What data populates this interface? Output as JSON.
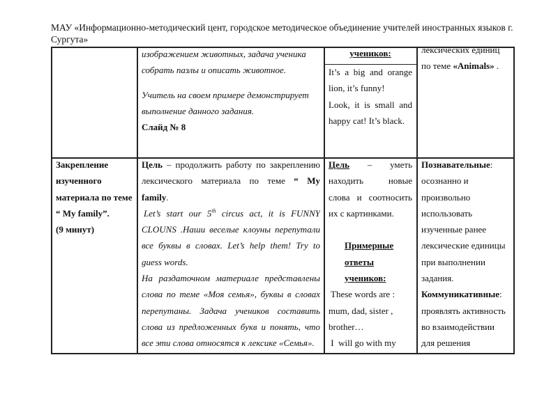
{
  "header": {
    "line1": "МАУ «Информационно-методический цент, городское методическое объединение учителей иностранных языков г.",
    "line2": "Сургута»"
  },
  "row1": {
    "col2": {
      "l1": "изображением животных, задача ученика",
      "l2": "собрать пазлы и описать животное.",
      "l3": "Учитель на своем примере демонстрирует",
      "l4": "выполнение данного задания.",
      "l5": "Слайд № 8"
    },
    "col3": {
      "heading": "учеников:",
      "l1": "It’s a big and orange",
      "l2": "lion, it’s funny!",
      "l3": "Look, it is small and",
      "l4": "happy cat! It’s black."
    },
    "col4": {
      "l1": "лексических единиц",
      "l2_prefix": "по теме ",
      "l2_bold": "«Animals»",
      "l2_suffix": " ."
    }
  },
  "row2": {
    "col1": {
      "l1": "Закрепление",
      "l2": "изученного",
      "l3": "материала по теме",
      "l4": "“ My family”.",
      "l5": "(9 минут)"
    },
    "col2": {
      "l1_bold": "Цель",
      "l1_rest": " – продолжить работу по закреплению",
      "l2_rest": "лексического материала по теме",
      "l2_bold": "“ My",
      "l3_bold": "family",
      "l3_rest": ".",
      "l4_a": "Let’s start our 5",
      "l4_sup": "th",
      "l4_b": " circus act, it is FUNNY",
      "l5": "CLOUNS .Наши веселые клоуны перепутали",
      "l6": "все буквы в словах. Let’s help them! Try to",
      "l7": "guess words.",
      "l8": "На раздаточном материале представлены",
      "l9": "слова по теме «Моя семья», буквы в словах",
      "l10": "перепутаны. Задача учеников составить",
      "l11": "слова из предложенных букв и понять, что",
      "l12": "все эти слова относятся к лексике «Семья»."
    },
    "col3": {
      "l1_bold": "Цель",
      "l1_rest": "– уметь",
      "l2": "находить новые",
      "l3": "слова и соотносить",
      "l4": "их с картинками.",
      "h1": "Примерные",
      "h2": "ответы",
      "h3": "учеников:",
      "a1": " These words are :",
      "a2": "mum, dad, sister ,",
      "a3": "brother…",
      "a4": " I  will go with my"
    },
    "col4": {
      "l1_bold": "Познавательные",
      "l1_rest": ":",
      "l2": "осознанно и",
      "l3": "произвольно",
      "l4": "использовать",
      "l5": "изученные ранее",
      "l6": "лексические единицы",
      "l7": "при выполнении",
      "l8": "задания.",
      "l9_bold": "Коммуникативные",
      "l9_rest": ":",
      "l10": "проявлять активность",
      "l11": "во взаимодействии",
      "l12": "для решения"
    }
  }
}
